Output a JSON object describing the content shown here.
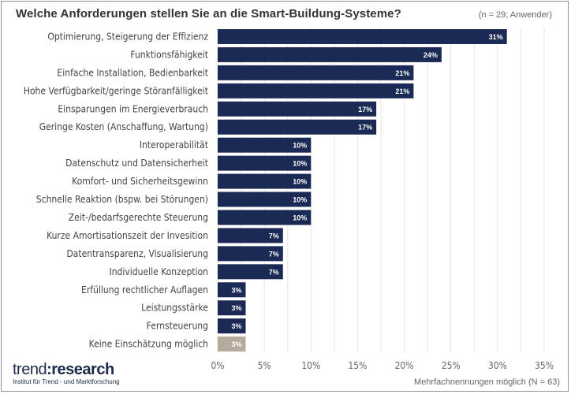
{
  "chart_data": {
    "type": "bar",
    "orientation": "horizontal",
    "title": "Welche Anforderungen stellen Sie an die Smart-Buildung-Systeme?",
    "subtitle": "(n = 29; Anwender)",
    "categories": [
      "Optimierung, Steigerung der Effizienz",
      "Funktionsfähigkeit",
      "Einfache Installation, Bedienbarkeit",
      "Hohe Verfügbarkeit/geringe Störanfälligkeit",
      "Einsparungen im Energieverbrauch",
      "Geringe Kosten (Anschaffung, Wartung)",
      "Interoperabilität",
      "Datenschutz und Datensicherheit",
      "Komfort- und Sicherheitsgewinn",
      "Schnelle Reaktion (bspw. bei Störungen)",
      "Zeit-/bedarfsgerechte Steuerung",
      "Kurze Amortisationszeit der Invesition",
      "Datentransparenz, Visualisierung",
      "Individuelle Konzeption",
      "Erfüllung rechtlicher Auflagen",
      "Leistungsstärke",
      "Fernsteuerung",
      "Keine Einschätzung möglich"
    ],
    "values": [
      31,
      24,
      21,
      21,
      17,
      17,
      10,
      10,
      10,
      10,
      10,
      7,
      7,
      7,
      3,
      3,
      3,
      3
    ],
    "data_labels": [
      "31%",
      "24%",
      "21%",
      "21%",
      "17%",
      "17%",
      "10%",
      "10%",
      "10%",
      "10%",
      "10%",
      "7%",
      "7%",
      "7%",
      "3%",
      "3%",
      "3%",
      "3%"
    ],
    "xlim": [
      0,
      35
    ],
    "xticks": [
      "0%",
      "5%",
      "10%",
      "15%",
      "20%",
      "25%",
      "30%",
      "35%"
    ],
    "grid": true,
    "colors": {
      "bar": "#1b2a55",
      "bar_none": "#b5aa9b",
      "label": "#ffffff"
    },
    "footnote": "Mehrfachnennungen möglich (N = 63)"
  },
  "logo": {
    "text_light": "trend",
    "text_sep": ":",
    "text_bold": "research",
    "tagline": "Institut für Trend - und Marktforschung"
  }
}
